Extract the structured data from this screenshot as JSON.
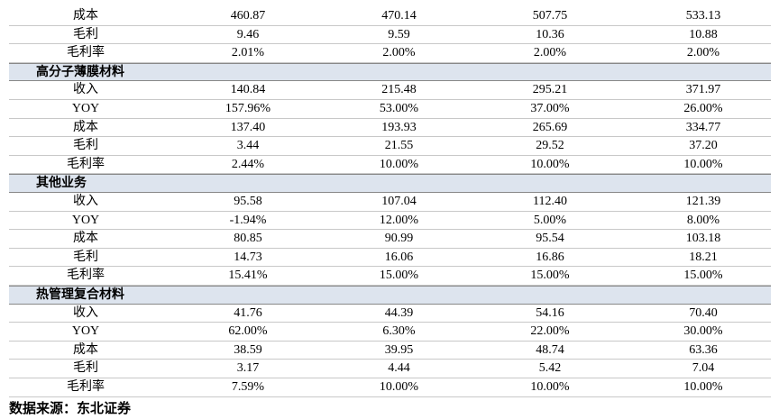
{
  "top_rows": [
    [
      "成本",
      "460.87",
      "470.14",
      "507.75",
      "533.13"
    ],
    [
      "毛利",
      "9.46",
      "9.59",
      "10.36",
      "10.88"
    ],
    [
      "毛利率",
      "2.01%",
      "2.00%",
      "2.00%",
      "2.00%"
    ]
  ],
  "sections": [
    {
      "title": "高分子薄膜材料",
      "rows": [
        [
          "收入",
          "140.84",
          "215.48",
          "295.21",
          "371.97"
        ],
        [
          "YOY",
          "157.96%",
          "53.00%",
          "37.00%",
          "26.00%"
        ],
        [
          "成本",
          "137.40",
          "193.93",
          "265.69",
          "334.77"
        ],
        [
          "毛利",
          "3.44",
          "21.55",
          "29.52",
          "37.20"
        ],
        [
          "毛利率",
          "2.44%",
          "10.00%",
          "10.00%",
          "10.00%"
        ]
      ]
    },
    {
      "title": "其他业务",
      "rows": [
        [
          "收入",
          "95.58",
          "107.04",
          "112.40",
          "121.39"
        ],
        [
          "YOY",
          "-1.94%",
          "12.00%",
          "5.00%",
          "8.00%"
        ],
        [
          "成本",
          "80.85",
          "90.99",
          "95.54",
          "103.18"
        ],
        [
          "毛利",
          "14.73",
          "16.06",
          "16.86",
          "18.21"
        ],
        [
          "毛利率",
          "15.41%",
          "15.00%",
          "15.00%",
          "15.00%"
        ]
      ]
    },
    {
      "title": "热管理复合材料",
      "rows": [
        [
          "收入",
          "41.76",
          "44.39",
          "54.16",
          "70.40"
        ],
        [
          "YOY",
          "62.00%",
          "6.30%",
          "22.00%",
          "30.00%"
        ],
        [
          "成本",
          "38.59",
          "39.95",
          "48.74",
          "63.36"
        ],
        [
          "毛利",
          "3.17",
          "4.44",
          "5.42",
          "7.04"
        ],
        [
          "毛利率",
          "7.59%",
          "10.00%",
          "10.00%",
          "10.00%"
        ]
      ]
    }
  ],
  "source": "数据来源：东北证券"
}
